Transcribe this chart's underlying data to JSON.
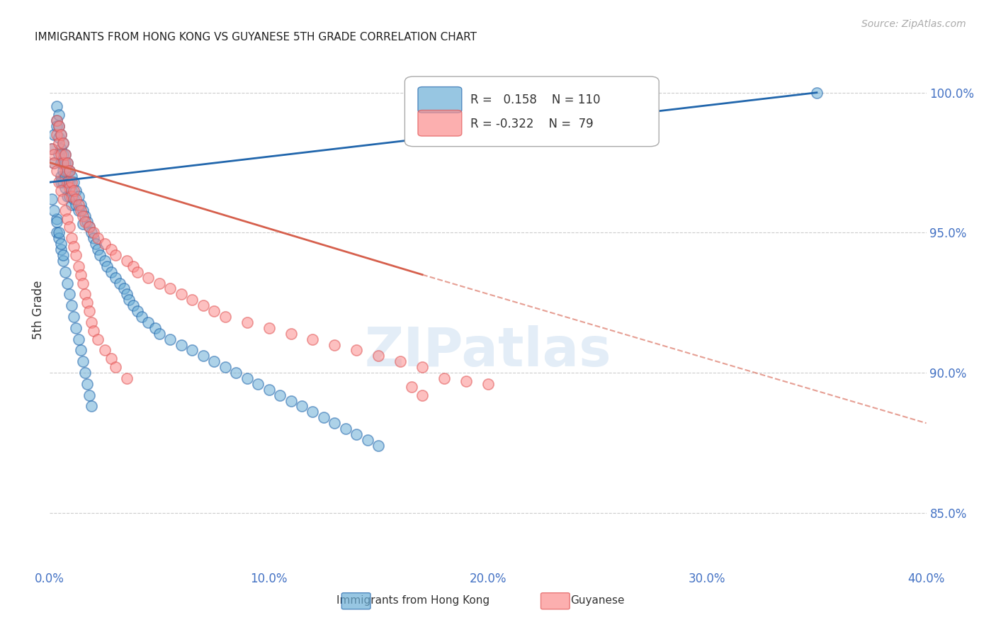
{
  "title": "IMMIGRANTS FROM HONG KONG VS GUYANESE 5TH GRADE CORRELATION CHART",
  "source_text": "Source: ZipAtlas.com",
  "ylabel": "5th Grade",
  "xlabel_ticks": [
    "0.0%",
    "10.0%",
    "20.0%",
    "30.0%",
    "40.0%"
  ],
  "xlabel_tick_vals": [
    0.0,
    0.1,
    0.2,
    0.3,
    0.4
  ],
  "ylabel_ticks": [
    "85.0%",
    "90.0%",
    "95.0%",
    "100.0%"
  ],
  "ylabel_tick_vals": [
    0.85,
    0.9,
    0.95,
    1.0
  ],
  "xlim": [
    0.0,
    0.4
  ],
  "ylim": [
    0.83,
    1.015
  ],
  "blue_R": 0.158,
  "blue_N": 110,
  "pink_R": -0.322,
  "pink_N": 79,
  "blue_color": "#6baed6",
  "pink_color": "#fc8d8d",
  "blue_line_color": "#2166ac",
  "pink_line_color": "#d6604d",
  "legend_label_blue": "Immigrants from Hong Kong",
  "legend_label_pink": "Guyanese",
  "watermark": "ZIPatlas",
  "title_fontsize": 11,
  "axis_color": "#4472c4",
  "tick_color": "#4472c4",
  "background_color": "#ffffff",
  "blue_scatter_x": [
    0.001,
    0.002,
    0.002,
    0.003,
    0.003,
    0.003,
    0.004,
    0.004,
    0.004,
    0.004,
    0.005,
    0.005,
    0.005,
    0.005,
    0.005,
    0.006,
    0.006,
    0.006,
    0.006,
    0.006,
    0.007,
    0.007,
    0.007,
    0.007,
    0.008,
    0.008,
    0.008,
    0.008,
    0.009,
    0.009,
    0.009,
    0.01,
    0.01,
    0.01,
    0.011,
    0.011,
    0.012,
    0.012,
    0.013,
    0.013,
    0.014,
    0.015,
    0.015,
    0.016,
    0.017,
    0.018,
    0.019,
    0.02,
    0.021,
    0.022,
    0.023,
    0.025,
    0.026,
    0.028,
    0.03,
    0.032,
    0.034,
    0.035,
    0.036,
    0.038,
    0.04,
    0.042,
    0.045,
    0.048,
    0.05,
    0.055,
    0.06,
    0.065,
    0.07,
    0.075,
    0.08,
    0.085,
    0.09,
    0.095,
    0.1,
    0.105,
    0.11,
    0.115,
    0.12,
    0.125,
    0.13,
    0.135,
    0.14,
    0.145,
    0.15,
    0.003,
    0.003,
    0.004,
    0.005,
    0.006,
    0.007,
    0.008,
    0.009,
    0.01,
    0.011,
    0.012,
    0.013,
    0.014,
    0.015,
    0.016,
    0.017,
    0.018,
    0.019,
    0.35,
    0.001,
    0.002,
    0.003,
    0.004,
    0.005,
    0.006
  ],
  "blue_scatter_y": [
    0.98,
    0.975,
    0.985,
    0.99,
    0.988,
    0.995,
    0.992,
    0.988,
    0.984,
    0.978,
    0.985,
    0.98,
    0.975,
    0.97,
    0.968,
    0.982,
    0.978,
    0.975,
    0.972,
    0.968,
    0.978,
    0.975,
    0.97,
    0.966,
    0.975,
    0.972,
    0.968,
    0.963,
    0.972,
    0.968,
    0.963,
    0.97,
    0.965,
    0.96,
    0.968,
    0.962,
    0.965,
    0.96,
    0.963,
    0.958,
    0.96,
    0.958,
    0.953,
    0.956,
    0.954,
    0.952,
    0.95,
    0.948,
    0.946,
    0.944,
    0.942,
    0.94,
    0.938,
    0.936,
    0.934,
    0.932,
    0.93,
    0.928,
    0.926,
    0.924,
    0.922,
    0.92,
    0.918,
    0.916,
    0.914,
    0.912,
    0.91,
    0.908,
    0.906,
    0.904,
    0.902,
    0.9,
    0.898,
    0.896,
    0.894,
    0.892,
    0.89,
    0.888,
    0.886,
    0.884,
    0.882,
    0.88,
    0.878,
    0.876,
    0.874,
    0.955,
    0.95,
    0.948,
    0.944,
    0.94,
    0.936,
    0.932,
    0.928,
    0.924,
    0.92,
    0.916,
    0.912,
    0.908,
    0.904,
    0.9,
    0.896,
    0.892,
    0.888,
    1.0,
    0.962,
    0.958,
    0.954,
    0.95,
    0.946,
    0.942
  ],
  "pink_scatter_x": [
    0.001,
    0.002,
    0.003,
    0.003,
    0.004,
    0.004,
    0.005,
    0.005,
    0.006,
    0.006,
    0.007,
    0.007,
    0.008,
    0.008,
    0.009,
    0.009,
    0.01,
    0.01,
    0.011,
    0.012,
    0.013,
    0.014,
    0.015,
    0.016,
    0.018,
    0.02,
    0.022,
    0.025,
    0.028,
    0.03,
    0.035,
    0.038,
    0.04,
    0.045,
    0.05,
    0.055,
    0.06,
    0.065,
    0.07,
    0.075,
    0.08,
    0.09,
    0.1,
    0.11,
    0.12,
    0.13,
    0.14,
    0.15,
    0.16,
    0.17,
    0.002,
    0.003,
    0.004,
    0.005,
    0.006,
    0.007,
    0.008,
    0.009,
    0.01,
    0.011,
    0.012,
    0.013,
    0.014,
    0.015,
    0.016,
    0.017,
    0.018,
    0.019,
    0.02,
    0.022,
    0.025,
    0.028,
    0.03,
    0.035,
    0.165,
    0.17,
    0.18,
    0.19,
    0.2
  ],
  "pink_scatter_y": [
    0.98,
    0.978,
    0.99,
    0.985,
    0.988,
    0.982,
    0.985,
    0.978,
    0.982,
    0.975,
    0.978,
    0.972,
    0.975,
    0.968,
    0.972,
    0.966,
    0.968,
    0.963,
    0.965,
    0.962,
    0.96,
    0.958,
    0.956,
    0.954,
    0.952,
    0.95,
    0.948,
    0.946,
    0.944,
    0.942,
    0.94,
    0.938,
    0.936,
    0.934,
    0.932,
    0.93,
    0.928,
    0.926,
    0.924,
    0.922,
    0.92,
    0.918,
    0.916,
    0.914,
    0.912,
    0.91,
    0.908,
    0.906,
    0.904,
    0.902,
    0.975,
    0.972,
    0.968,
    0.965,
    0.962,
    0.958,
    0.955,
    0.952,
    0.948,
    0.945,
    0.942,
    0.938,
    0.935,
    0.932,
    0.928,
    0.925,
    0.922,
    0.918,
    0.915,
    0.912,
    0.908,
    0.905,
    0.902,
    0.898,
    0.895,
    0.892,
    0.898,
    0.897,
    0.896
  ]
}
